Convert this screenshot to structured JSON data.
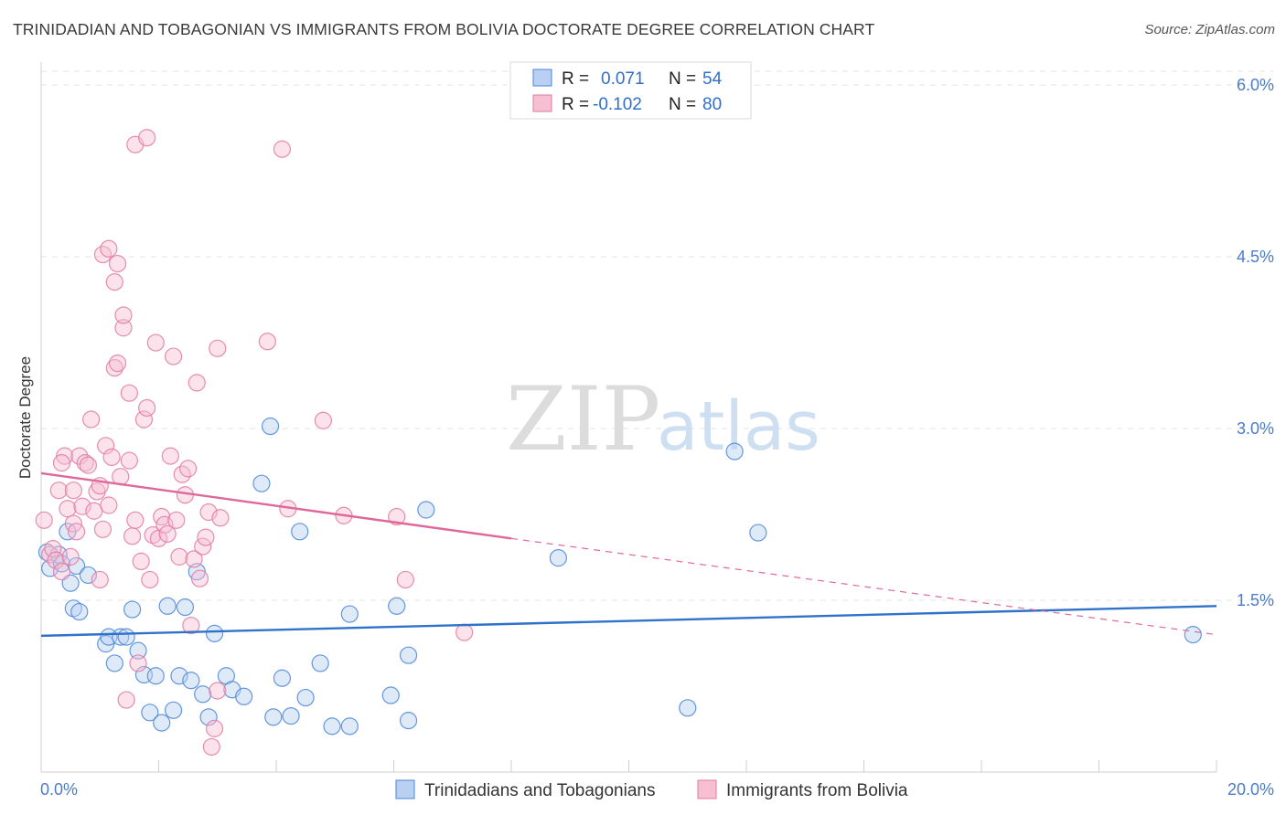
{
  "title": "TRINIDADIAN AND TOBAGONIAN VS IMMIGRANTS FROM BOLIVIA DOCTORATE DEGREE CORRELATION CHART",
  "source": "Source: ZipAtlas.com",
  "watermark": {
    "zip": "ZIP",
    "atlas": "atlas"
  },
  "legend": {
    "r_label": "R =",
    "n_label": "N =",
    "entries": [
      {
        "r": "0.071",
        "n": "54"
      },
      {
        "r": "-0.102",
        "n": "80"
      }
    ]
  },
  "colors": {
    "blue": "#4a86d8",
    "blue_fill": "#b9d0f2",
    "pink": "#e27aa1",
    "pink_fill": "#f6bfd2",
    "blue_line": "#2f72c9",
    "pink_line": "#e0679a"
  },
  "chart_data": {
    "type": "scatter",
    "xlabel": "",
    "ylabel": "Doctorate Degree",
    "xlim": [
      0,
      20
    ],
    "ylim": [
      0,
      6.2
    ],
    "x_tick_labels": [
      "0.0%",
      "20.0%"
    ],
    "y_ticks": [
      1.5,
      3.0,
      4.5,
      6.0
    ],
    "y_tick_labels": [
      "1.5%",
      "3.0%",
      "4.5%",
      "6.0%"
    ],
    "grid": true,
    "legend_position": "top-center",
    "series": [
      {
        "name": "Trinidadians and Tobagonians",
        "color": "#4a86d8",
        "points": [
          [
            0.1,
            1.92
          ],
          [
            0.15,
            1.78
          ],
          [
            0.3,
            1.9
          ],
          [
            0.35,
            1.82
          ],
          [
            0.45,
            2.1
          ],
          [
            0.5,
            1.65
          ],
          [
            0.55,
            1.43
          ],
          [
            0.6,
            1.8
          ],
          [
            0.65,
            1.4
          ],
          [
            0.8,
            1.72
          ],
          [
            1.1,
            1.12
          ],
          [
            1.15,
            1.18
          ],
          [
            1.25,
            0.95
          ],
          [
            1.35,
            1.18
          ],
          [
            1.45,
            1.18
          ],
          [
            1.55,
            1.42
          ],
          [
            1.65,
            1.06
          ],
          [
            1.75,
            0.85
          ],
          [
            1.85,
            0.52
          ],
          [
            1.95,
            0.84
          ],
          [
            2.05,
            0.43
          ],
          [
            2.15,
            1.45
          ],
          [
            2.25,
            0.54
          ],
          [
            2.35,
            0.84
          ],
          [
            2.45,
            1.44
          ],
          [
            2.55,
            0.8
          ],
          [
            2.65,
            1.75
          ],
          [
            2.75,
            0.68
          ],
          [
            2.85,
            0.48
          ],
          [
            2.95,
            1.21
          ],
          [
            3.15,
            0.84
          ],
          [
            3.25,
            0.72
          ],
          [
            3.45,
            0.66
          ],
          [
            3.75,
            2.52
          ],
          [
            3.9,
            3.02
          ],
          [
            3.95,
            0.48
          ],
          [
            4.1,
            0.82
          ],
          [
            4.25,
            0.49
          ],
          [
            4.4,
            2.1
          ],
          [
            4.5,
            0.65
          ],
          [
            4.75,
            0.95
          ],
          [
            4.95,
            0.4
          ],
          [
            5.25,
            0.4
          ],
          [
            5.25,
            1.38
          ],
          [
            5.95,
            0.67
          ],
          [
            6.05,
            1.45
          ],
          [
            6.25,
            0.45
          ],
          [
            6.25,
            1.02
          ],
          [
            6.55,
            2.29
          ],
          [
            8.8,
            1.87
          ],
          [
            11.0,
            0.56
          ],
          [
            11.8,
            2.8
          ],
          [
            12.2,
            2.09
          ],
          [
            19.6,
            1.2
          ]
        ]
      },
      {
        "name": "Immigrants from Bolivia",
        "color": "#e27aa1",
        "points": [
          [
            0.05,
            2.2
          ],
          [
            0.15,
            1.9
          ],
          [
            0.2,
            1.95
          ],
          [
            0.25,
            1.85
          ],
          [
            0.3,
            2.46
          ],
          [
            0.35,
            1.75
          ],
          [
            0.4,
            2.76
          ],
          [
            0.45,
            2.3
          ],
          [
            0.5,
            1.88
          ],
          [
            0.55,
            2.17
          ],
          [
            0.6,
            2.1
          ],
          [
            0.65,
            2.76
          ],
          [
            0.7,
            2.32
          ],
          [
            0.75,
            2.7
          ],
          [
            0.8,
            2.68
          ],
          [
            0.85,
            3.08
          ],
          [
            0.9,
            2.28
          ],
          [
            0.95,
            2.45
          ],
          [
            1.0,
            1.68
          ],
          [
            1.05,
            2.12
          ],
          [
            1.1,
            2.85
          ],
          [
            1.15,
            2.33
          ],
          [
            1.2,
            2.75
          ],
          [
            1.25,
            3.53
          ],
          [
            1.3,
            3.57
          ],
          [
            1.35,
            2.58
          ],
          [
            1.4,
            3.88
          ],
          [
            1.45,
            0.63
          ],
          [
            1.5,
            2.72
          ],
          [
            1.55,
            2.06
          ],
          [
            1.6,
            2.2
          ],
          [
            1.65,
            0.95
          ],
          [
            1.7,
            1.84
          ],
          [
            1.75,
            3.08
          ],
          [
            1.8,
            3.18
          ],
          [
            1.85,
            1.68
          ],
          [
            1.9,
            2.07
          ],
          [
            1.95,
            3.75
          ],
          [
            2.0,
            2.04
          ],
          [
            2.05,
            2.23
          ],
          [
            2.1,
            2.16
          ],
          [
            2.15,
            2.08
          ],
          [
            2.2,
            2.76
          ],
          [
            2.25,
            3.63
          ],
          [
            2.3,
            2.2
          ],
          [
            2.35,
            1.88
          ],
          [
            2.4,
            2.6
          ],
          [
            2.45,
            2.42
          ],
          [
            2.5,
            2.65
          ],
          [
            2.55,
            1.28
          ],
          [
            2.6,
            1.86
          ],
          [
            2.65,
            3.4
          ],
          [
            2.7,
            1.69
          ],
          [
            2.75,
            1.97
          ],
          [
            2.8,
            2.05
          ],
          [
            2.85,
            2.27
          ],
          [
            2.9,
            0.22
          ],
          [
            2.95,
            0.38
          ],
          [
            3.0,
            0.71
          ],
          [
            3.05,
            2.22
          ],
          [
            1.6,
            5.48
          ],
          [
            1.8,
            5.54
          ],
          [
            4.1,
            5.44
          ],
          [
            1.05,
            4.52
          ],
          [
            1.15,
            4.57
          ],
          [
            1.25,
            4.28
          ],
          [
            1.3,
            4.44
          ],
          [
            1.4,
            3.99
          ],
          [
            1.5,
            3.31
          ],
          [
            3.0,
            3.7
          ],
          [
            3.85,
            3.76
          ],
          [
            4.2,
            2.3
          ],
          [
            4.8,
            3.07
          ],
          [
            5.15,
            2.24
          ],
          [
            6.05,
            2.23
          ],
          [
            6.2,
            1.68
          ],
          [
            7.2,
            1.22
          ],
          [
            0.35,
            2.7
          ],
          [
            0.55,
            2.46
          ],
          [
            1.0,
            2.5
          ]
        ]
      }
    ],
    "trend_lines": [
      {
        "series": "Trinidadians and Tobagonians",
        "x": [
          0,
          20
        ],
        "y": [
          1.19,
          1.45
        ],
        "style": "solid"
      },
      {
        "series": "Immigrants from Bolivia",
        "x": [
          0,
          8
        ],
        "y": [
          2.61,
          2.04
        ],
        "style": "solid"
      },
      {
        "series": "Immigrants from Bolivia",
        "x": [
          8,
          20
        ],
        "y": [
          2.04,
          1.2
        ],
        "style": "dashed"
      }
    ]
  }
}
